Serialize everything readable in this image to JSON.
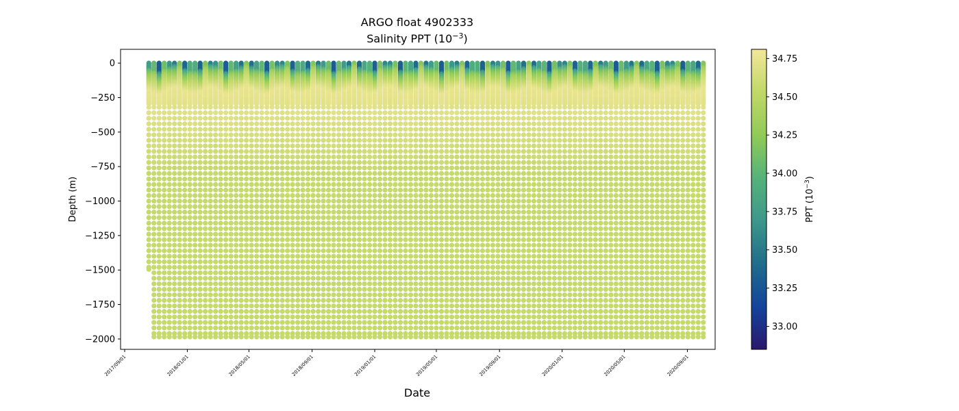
{
  "chart_data": {
    "type": "scatter",
    "title": "ARGO float 4902333",
    "subtitle_prefix": "Salinity PPT (10",
    "subtitle_exp": "−3",
    "subtitle_suffix": ")",
    "xlabel": "Date",
    "ylabel": "Depth (m)",
    "ylim": [
      -2075,
      100
    ],
    "xlim": [
      "2017-08-24",
      "2020-10-25"
    ],
    "y_ticks": [
      0,
      -250,
      -500,
      -750,
      -1000,
      -1250,
      -1500,
      -1750,
      -2000
    ],
    "y_tick_labels": [
      "0",
      "−250",
      "−500",
      "−750",
      "−1000",
      "−1250",
      "−1500",
      "−1750",
      "−2000"
    ],
    "x_ticks": [
      "2017-09-01",
      "2018-01-01",
      "2018-05-01",
      "2018-09-01",
      "2019-01-01",
      "2019-05-01",
      "2019-09-01",
      "2020-01-01",
      "2020-05-01",
      "2020-09-01"
    ],
    "x_tick_labels": [
      "2017/09/01",
      "2018/01/01",
      "2018/05/01",
      "2018/09/01",
      "2019/01/01",
      "2019/05/01",
      "2019/09/01",
      "2020/01/01",
      "2020/05/01",
      "2020/09/01"
    ],
    "profiles": {
      "first_date": "2017-10-18",
      "last_date": "2020-10-04",
      "interval_days": 10,
      "default_max_depth": -1985,
      "depth_overrides": [
        {
          "date": "2017-10-18",
          "max_depth": -1495
        },
        {
          "date": "2017-10-28",
          "max_depth": -1985
        }
      ],
      "missing_dates": [
        "2019-02-15"
      ],
      "surface_salinity_range": [
        33.3,
        34.2
      ],
      "subsurface_salinity_max": 34.75,
      "deep_salinity": 34.55
    },
    "colorbar": {
      "label_prefix": "PPT (10",
      "label_exp": "−3",
      "label_suffix": ")",
      "range": [
        32.85,
        34.81
      ],
      "ticks": [
        33.0,
        33.25,
        33.5,
        33.75,
        34.0,
        34.25,
        34.5,
        34.75
      ],
      "tick_labels": [
        "33.00",
        "33.25",
        "33.50",
        "33.75",
        "34.00",
        "34.25",
        "34.50",
        "34.75"
      ],
      "colormap": [
        "#2a186c",
        "#14439c",
        "#206e8b",
        "#3d988b",
        "#55b27a",
        "#8fca57",
        "#c2d869",
        "#f3e79a"
      ]
    }
  }
}
